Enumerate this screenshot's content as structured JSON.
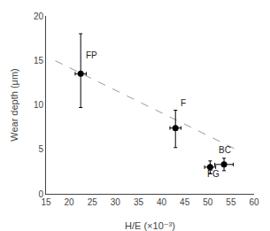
{
  "chart_data": {
    "type": "scatter",
    "xlabel": "H/E (×10⁻³)",
    "ylabel": "Wear depth (μm)",
    "xlim": [
      15,
      60
    ],
    "ylim": [
      0,
      20
    ],
    "xticks": [
      15,
      20,
      25,
      30,
      35,
      40,
      45,
      50,
      55,
      60
    ],
    "yticks": [
      0,
      5,
      10,
      15,
      20
    ],
    "grid": false,
    "series": [
      {
        "type": "line",
        "x": [
          17,
          57
        ],
        "values": [
          14.965,
          4.765
        ],
        "color": "#999999",
        "line_style": "dashed"
      },
      {
        "type": "scatter",
        "x": [
          22.5,
          43.0,
          50.5,
          53.5
        ],
        "values": [
          13.5,
          7.4,
          3.0,
          3.3
        ],
        "x_error": [
          1.2,
          1.2,
          1.2,
          2.0
        ],
        "y_error_up": [
          4.5,
          2.0,
          0.7,
          0.7
        ],
        "y_error_down": [
          3.8,
          2.2,
          0.7,
          0.7
        ],
        "color": "black",
        "marker": "circle"
      }
    ],
    "annotations": [
      {
        "text": "FP",
        "x": 23.2,
        "y": 14.8
      },
      {
        "text": "F",
        "x": 43.7,
        "y": 9.5
      },
      {
        "text": "FG",
        "x": 49.5,
        "y": 1.5
      },
      {
        "text": "BC",
        "x": 52.0,
        "y": 4.2
      }
    ]
  }
}
